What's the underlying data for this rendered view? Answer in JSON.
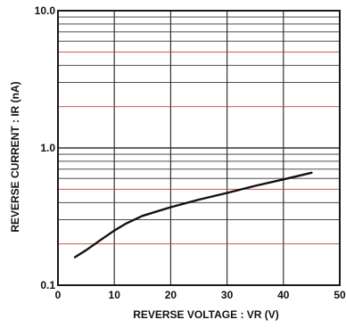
{
  "chart_data": {
    "type": "line",
    "xlabel": "REVERSE VOLTAGE : VR (V)",
    "ylabel": "REVERSE CURRENT : IR (nA)",
    "xlim": [
      0,
      50
    ],
    "ylim": [
      0.1,
      10.0
    ],
    "yscale": "log",
    "grid": true,
    "legend": "none",
    "x_ticks": [
      {
        "value": 0,
        "label": "0"
      },
      {
        "value": 10,
        "label": "10"
      },
      {
        "value": 20,
        "label": "20"
      },
      {
        "value": 30,
        "label": "30"
      },
      {
        "value": 40,
        "label": "40"
      },
      {
        "value": 50,
        "label": "50"
      }
    ],
    "y_ticks": [
      {
        "value": 0.1,
        "label": "0.1"
      },
      {
        "value": 1.0,
        "label": "1.0"
      },
      {
        "value": 10.0,
        "label": "10.0"
      }
    ],
    "series": [
      {
        "x": [
          3,
          5,
          8,
          10,
          12,
          15,
          20,
          25,
          30,
          35,
          40,
          45
        ],
        "y": [
          0.16,
          0.18,
          0.22,
          0.25,
          0.28,
          0.32,
          0.37,
          0.42,
          0.47,
          0.53,
          0.59,
          0.66
        ]
      }
    ],
    "colors": {
      "frame": "#1a1a1a",
      "grid": "#333333",
      "grid_tint": "#b8433f",
      "line": "#111111"
    }
  }
}
